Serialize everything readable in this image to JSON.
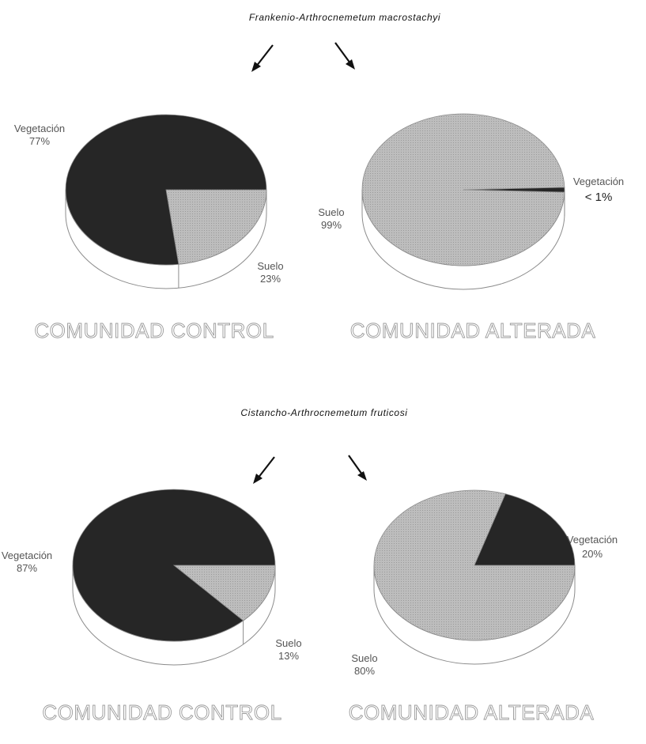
{
  "colors": {
    "vegetation": "#262626",
    "soil": "#b9b9b9",
    "outline": "#8c8c8c",
    "arrow": "#111111"
  },
  "chart_data": [
    {
      "type": "pie",
      "title": "Frankenio-Arthrocnemetum macrostachyi",
      "caption": "COMUNIDAD CONTROL",
      "slices": [
        {
          "label": "Vegetación",
          "value_text": "77%",
          "value": 77,
          "color": "#262626"
        },
        {
          "label": "Suelo",
          "value_text": "23%",
          "value": 23,
          "color": "#b9b9b9"
        }
      ]
    },
    {
      "type": "pie",
      "title": "Frankenio-Arthrocnemetum macrostachyi",
      "caption": "COMUNIDAD ALTERADA",
      "slices": [
        {
          "label": "Vegetación",
          "value_text": "< 1%",
          "value": 1,
          "color": "#262626"
        },
        {
          "label": "Suelo",
          "value_text": "99%",
          "value": 99,
          "color": "#b9b9b9"
        }
      ]
    },
    {
      "type": "pie",
      "title": "Cistancho-Arthrocnemetum fruticosi",
      "caption": "COMUNIDAD CONTROL",
      "slices": [
        {
          "label": "Vegetación",
          "value_text": "87%",
          "value": 87,
          "color": "#262626"
        },
        {
          "label": "Suelo",
          "value_text": "13%",
          "value": 13,
          "color": "#b9b9b9"
        }
      ]
    },
    {
      "type": "pie",
      "title": "Cistancho-Arthrocnemetum fruticosi",
      "caption": "COMUNIDAD ALTERADA",
      "slices": [
        {
          "label": "Vegetación",
          "value_text": "20%",
          "value": 20,
          "color": "#262626"
        },
        {
          "label": "Suelo",
          "value_text": "80%",
          "value": 80,
          "color": "#b9b9b9"
        }
      ]
    }
  ]
}
